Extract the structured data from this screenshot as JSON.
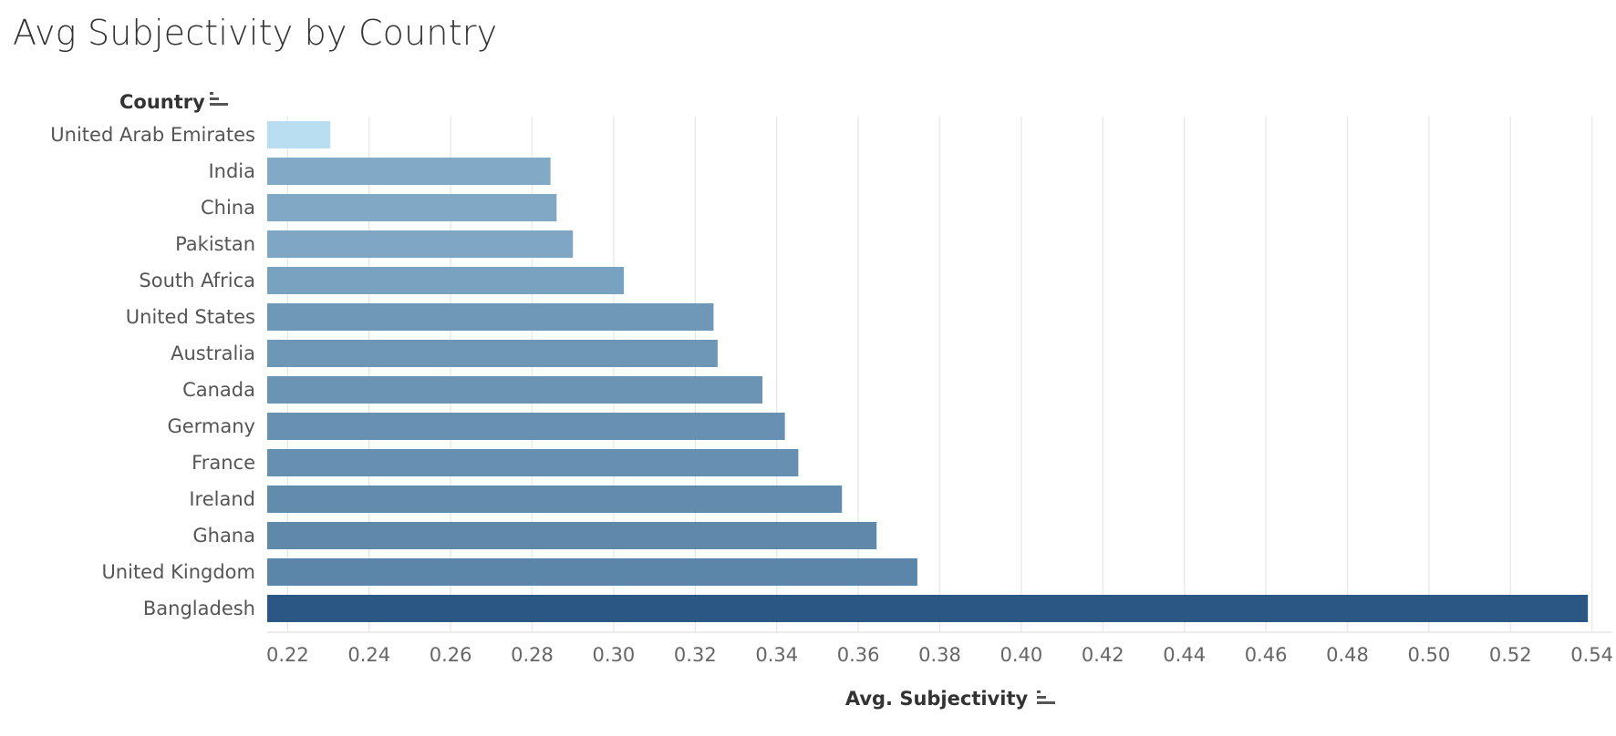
{
  "chart_data": {
    "type": "bar",
    "orientation": "horizontal",
    "title": "Avg Subjectivity by Country",
    "category_header": "Country",
    "xlabel": "Avg. Subjectivity",
    "xlim": [
      0.215,
      0.545
    ],
    "xticks": [
      "0.22",
      "0.24",
      "0.26",
      "0.28",
      "0.30",
      "0.32",
      "0.34",
      "0.36",
      "0.38",
      "0.40",
      "0.42",
      "0.44",
      "0.46",
      "0.48",
      "0.50",
      "0.52",
      "0.54"
    ],
    "grid": true,
    "sort_icons": [
      "sort-descending-icon",
      "sort-descending-icon"
    ],
    "color_low": "#b9ddf1",
    "color_high": "#2a5783",
    "categories": [
      "United Arab Emirates",
      "India",
      "China",
      "Pakistan",
      "South Africa",
      "United States",
      "Australia",
      "Canada",
      "Germany",
      "France",
      "Ireland",
      "Ghana",
      "United Kingdom",
      "Bangladesh"
    ],
    "values": [
      0.2305,
      0.2845,
      0.286,
      0.29,
      0.3025,
      0.3245,
      0.3255,
      0.3365,
      0.342,
      0.3453,
      0.356,
      0.3645,
      0.3745,
      0.539
    ]
  }
}
